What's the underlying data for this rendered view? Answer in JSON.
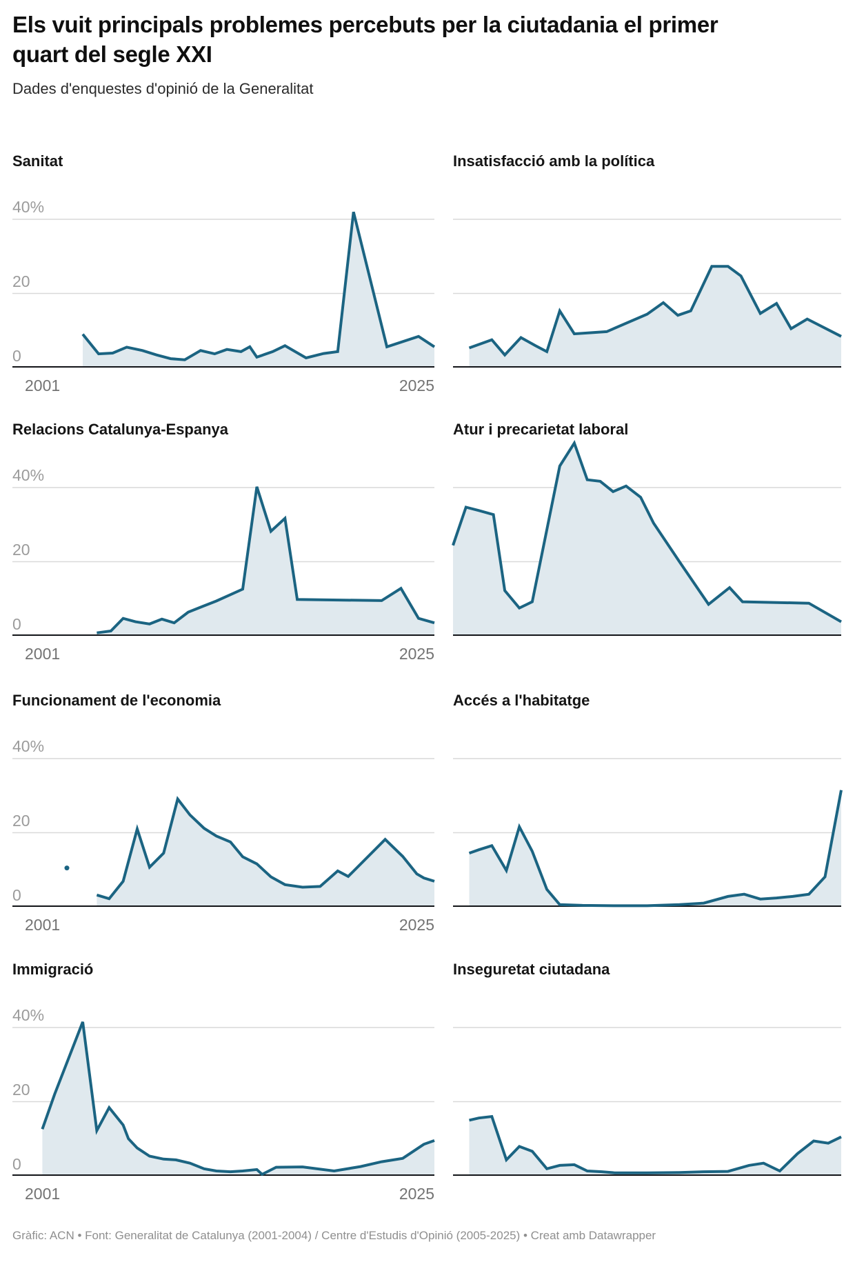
{
  "header": {
    "title": "Els vuit principals problemes percebuts per la ciutadania el primer quart del segle XXI",
    "subtitle": "Dades d'enquestes d'opinió de la Generalitat"
  },
  "footer": {
    "credit": "Gràfic: ACN • Font: Generalitat de Catalunya (2001-2004) / Centre d'Estudis d'Opinió (2005-2025) • Creat amb Datawrapper"
  },
  "axis_labels": {
    "y40": "40%",
    "y20": "20",
    "y0": "0",
    "x_left": "2001",
    "x_right": "2025"
  },
  "colors": {
    "line": "#1b6482",
    "fill": "#e0e9ee",
    "grid": "#d9d9d9",
    "axis": "#111317",
    "y_label": "#9b9b9b",
    "x_label": "#737373"
  },
  "chart_data": [
    {
      "type": "area",
      "title": "Sanitat",
      "unit": "%",
      "x_range": [
        2001,
        2025
      ],
      "yticks": [
        0,
        20,
        40
      ],
      "grid": true,
      "legend": "none",
      "points": [
        [
          2005,
          9
        ],
        [
          2005.9,
          3.7
        ],
        [
          2006.7,
          3.9
        ],
        [
          2007.5,
          5.5
        ],
        [
          2008.4,
          4.6
        ],
        [
          2009.2,
          3.4
        ],
        [
          2010,
          2.4
        ],
        [
          2010.8,
          2.1
        ],
        [
          2011.7,
          4.6
        ],
        [
          2012.5,
          3.7
        ],
        [
          2013.2,
          4.9
        ],
        [
          2014,
          4.3
        ],
        [
          2014.5,
          5.6
        ],
        [
          2014.9,
          2.8
        ],
        [
          2015.8,
          4.3
        ],
        [
          2016.5,
          5.9
        ],
        [
          2017.7,
          2.6
        ],
        [
          2018.7,
          3.8
        ],
        [
          2019.5,
          4.3
        ],
        [
          2020.4,
          42
        ],
        [
          2022.3,
          5.6
        ],
        [
          2024.1,
          8.4
        ],
        [
          2025,
          5.6
        ]
      ]
    },
    {
      "type": "area",
      "title": "Insatisfacció amb la política",
      "unit": "%",
      "x_range": [
        2001,
        2025
      ],
      "yticks": [
        0,
        20,
        40
      ],
      "grid": true,
      "legend": "none",
      "points": [
        [
          2002,
          5.3
        ],
        [
          2003.4,
          7.5
        ],
        [
          2004.2,
          3.4
        ],
        [
          2005.2,
          8.1
        ],
        [
          2006.1,
          5.9
        ],
        [
          2006.8,
          4.3
        ],
        [
          2007.6,
          15.3
        ],
        [
          2008.5,
          9.1
        ],
        [
          2009.5,
          9.4
        ],
        [
          2010.5,
          9.7
        ],
        [
          2013,
          14.4
        ],
        [
          2014,
          17.5
        ],
        [
          2014.9,
          14.1
        ],
        [
          2015.7,
          15.3
        ],
        [
          2017,
          27.3
        ],
        [
          2018,
          27.3
        ],
        [
          2018.8,
          24.7
        ],
        [
          2020,
          14.6
        ],
        [
          2021,
          17.3
        ],
        [
          2021.9,
          10.5
        ],
        [
          2022.9,
          13.1
        ],
        [
          2025,
          8.4
        ]
      ]
    },
    {
      "type": "area",
      "title": "Relacions Catalunya-Espanya",
      "unit": "%",
      "x_range": [
        2001,
        2025
      ],
      "yticks": [
        0,
        20,
        40
      ],
      "grid": true,
      "legend": "none",
      "points": [
        [
          2005.8,
          0.8
        ],
        [
          2006.6,
          1.3
        ],
        [
          2007.3,
          4.7
        ],
        [
          2008,
          3.8
        ],
        [
          2008.8,
          3.2
        ],
        [
          2009.5,
          4.5
        ],
        [
          2010.2,
          3.5
        ],
        [
          2011,
          6.4
        ],
        [
          2011.8,
          7.9
        ],
        [
          2012.6,
          9.4
        ],
        [
          2013.4,
          11.1
        ],
        [
          2014.1,
          12.6
        ],
        [
          2014.9,
          40.2
        ],
        [
          2015.7,
          28.2
        ],
        [
          2016.5,
          31.7
        ],
        [
          2017.2,
          9.8
        ],
        [
          2022,
          9.5
        ],
        [
          2023.1,
          12.8
        ],
        [
          2024.1,
          4.7
        ],
        [
          2025,
          3.5
        ]
      ]
    },
    {
      "type": "area",
      "title": "Atur i precarietat laboral",
      "unit": "%",
      "x_range": [
        2001,
        2025
      ],
      "yticks": [
        0,
        20,
        40
      ],
      "grid": true,
      "legend": "none",
      "points": [
        [
          2001,
          24.4
        ],
        [
          2001.8,
          34.7
        ],
        [
          2002.6,
          33.8
        ],
        [
          2003.5,
          32.7
        ],
        [
          2004.2,
          12.2
        ],
        [
          2005.1,
          7.5
        ],
        [
          2005.9,
          9.2
        ],
        [
          2007.6,
          45.8
        ],
        [
          2008.5,
          52
        ],
        [
          2009.3,
          42.1
        ],
        [
          2010.1,
          41.7
        ],
        [
          2010.9,
          38.9
        ],
        [
          2011.7,
          40.4
        ],
        [
          2012.6,
          37.4
        ],
        [
          2013.4,
          30.4
        ],
        [
          2015,
          20
        ],
        [
          2016.8,
          8.5
        ],
        [
          2018.1,
          13
        ],
        [
          2018.9,
          9.2
        ],
        [
          2023,
          8.8
        ],
        [
          2025,
          3.8
        ]
      ]
    },
    {
      "type": "area",
      "title": "Funcionament de l'economia",
      "unit": "%",
      "x_range": [
        2001,
        2025
      ],
      "yticks": [
        0,
        20,
        40
      ],
      "grid": true,
      "legend": "none",
      "isolated_point": [
        2004.1,
        10.5
      ],
      "points": [
        [
          2005.8,
          3.2
        ],
        [
          2006.5,
          2.2
        ],
        [
          2007.3,
          6.9
        ],
        [
          2008.1,
          21
        ],
        [
          2008.8,
          10.7
        ],
        [
          2009.6,
          14.5
        ],
        [
          2010.4,
          29.1
        ],
        [
          2011.1,
          24.8
        ],
        [
          2011.9,
          21.2
        ],
        [
          2012.6,
          19.1
        ],
        [
          2013.4,
          17.5
        ],
        [
          2014.1,
          13.5
        ],
        [
          2014.9,
          11.6
        ],
        [
          2015.7,
          8.1
        ],
        [
          2016.5,
          6
        ],
        [
          2017.5,
          5.3
        ],
        [
          2018.5,
          5.5
        ],
        [
          2019.5,
          9.7
        ],
        [
          2020.1,
          8.2
        ],
        [
          2022.2,
          18.2
        ],
        [
          2023.2,
          13.6
        ],
        [
          2024,
          8.9
        ],
        [
          2024.4,
          7.8
        ],
        [
          2025,
          6.9
        ]
      ]
    },
    {
      "type": "area",
      "title": "Accés a l'habitatge",
      "unit": "%",
      "x_range": [
        2001,
        2025
      ],
      "yticks": [
        0,
        20,
        40
      ],
      "grid": true,
      "legend": "none",
      "points": [
        [
          2002,
          14.5
        ],
        [
          2002.6,
          15.4
        ],
        [
          2003.4,
          16.5
        ],
        [
          2004.3,
          9.8
        ],
        [
          2005.1,
          21.6
        ],
        [
          2005.9,
          15
        ],
        [
          2006.8,
          4.7
        ],
        [
          2007.6,
          0.6
        ],
        [
          2009,
          0.4
        ],
        [
          2011,
          0.3
        ],
        [
          2013,
          0.3
        ],
        [
          2015,
          0.6
        ],
        [
          2016.5,
          1
        ],
        [
          2018,
          2.8
        ],
        [
          2019,
          3.4
        ],
        [
          2020,
          2.1
        ],
        [
          2021,
          2.4
        ],
        [
          2022,
          2.8
        ],
        [
          2023,
          3.4
        ],
        [
          2024,
          8.1
        ],
        [
          2025,
          31.5
        ]
      ]
    },
    {
      "type": "area",
      "title": "Immigració",
      "unit": "%",
      "x_range": [
        2001,
        2025
      ],
      "yticks": [
        0,
        20,
        40
      ],
      "grid": true,
      "legend": "none",
      "points": [
        [
          2002.7,
          12.6
        ],
        [
          2003.4,
          22
        ],
        [
          2005,
          41.5
        ],
        [
          2005.8,
          12.2
        ],
        [
          2006.5,
          18.4
        ],
        [
          2007.3,
          13.7
        ],
        [
          2007.6,
          10
        ],
        [
          2008.1,
          7.5
        ],
        [
          2008.8,
          5.3
        ],
        [
          2009.6,
          4.5
        ],
        [
          2010.3,
          4.3
        ],
        [
          2011.1,
          3.4
        ],
        [
          2011.9,
          1.9
        ],
        [
          2012.6,
          1.3
        ],
        [
          2013.4,
          1.1
        ],
        [
          2014.1,
          1.3
        ],
        [
          2014.9,
          1.7
        ],
        [
          2015.2,
          0.4
        ],
        [
          2016,
          2.3
        ],
        [
          2017.5,
          2.4
        ],
        [
          2019.3,
          1.3
        ],
        [
          2020.8,
          2.5
        ],
        [
          2022,
          3.8
        ],
        [
          2023.2,
          4.7
        ],
        [
          2024.4,
          8.5
        ],
        [
          2025,
          9.5
        ]
      ]
    },
    {
      "type": "area",
      "title": "Inseguretat ciutadana",
      "unit": "%",
      "x_range": [
        2001,
        2025
      ],
      "yticks": [
        0,
        20,
        40
      ],
      "grid": true,
      "legend": "none",
      "points": [
        [
          2002,
          15
        ],
        [
          2002.6,
          15.6
        ],
        [
          2003.4,
          16
        ],
        [
          2004.3,
          4.3
        ],
        [
          2005.1,
          7.9
        ],
        [
          2005.9,
          6.6
        ],
        [
          2006.8,
          1.9
        ],
        [
          2007.6,
          2.8
        ],
        [
          2008.5,
          3
        ],
        [
          2009.3,
          1.3
        ],
        [
          2010.2,
          1.1
        ],
        [
          2011,
          0.8
        ],
        [
          2013,
          0.8
        ],
        [
          2015,
          0.9
        ],
        [
          2016.5,
          1.1
        ],
        [
          2018,
          1.2
        ],
        [
          2019.3,
          2.8
        ],
        [
          2020.2,
          3.4
        ],
        [
          2021.2,
          1.3
        ],
        [
          2022.3,
          6
        ],
        [
          2023.3,
          9.4
        ],
        [
          2024.2,
          8.8
        ],
        [
          2025,
          10.5
        ]
      ]
    }
  ]
}
